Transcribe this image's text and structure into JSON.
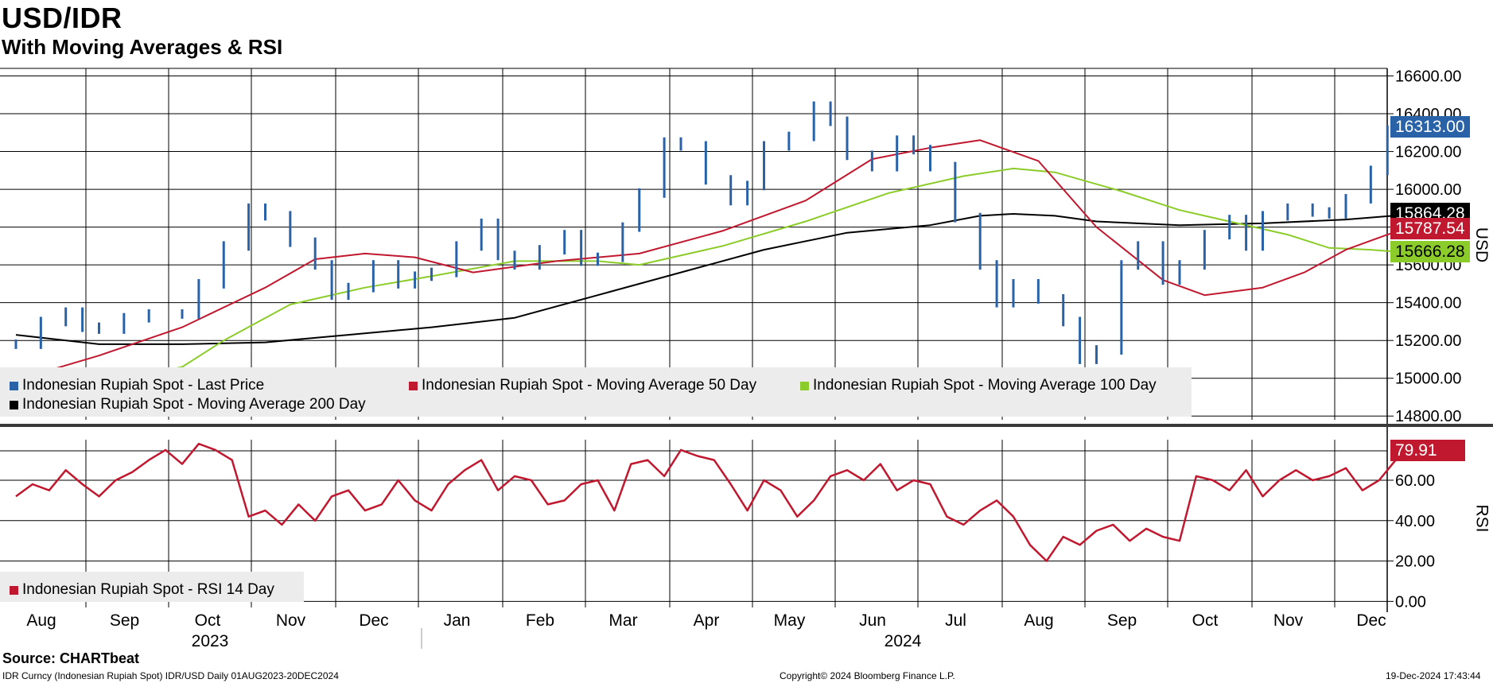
{
  "header": {
    "title": "USD/IDR",
    "subtitle": "With Moving Averages & RSI"
  },
  "footer": {
    "source": "Source: CHARTbeat",
    "ticker": "IDR Curncy (Indonesian Rupiah Spot) IDR/USD  Daily 01AUG2023-20DEC2024",
    "copyright": "Copyright© 2024 Bloomberg Finance L.P.",
    "timestamp": "19-Dec-2024 17:43:44"
  },
  "colors": {
    "last_price": "#2a62a8",
    "ma50": "#c0182f",
    "ma100": "#8ccc2a",
    "ma200": "#000000",
    "rsi": "#c0182f",
    "badge_price": "#2a62a8",
    "badge_ma50": "#c0182f",
    "badge_ma100": "#8ccc2a",
    "badge_ma200": "#000000",
    "badge_rsi": "#c0182f"
  },
  "chart_data": {
    "type": "line",
    "x_months": [
      "Aug",
      "Sep",
      "Oct",
      "Nov",
      "Dec",
      "Jan",
      "Feb",
      "Mar",
      "Apr",
      "May",
      "Jun",
      "Jul",
      "Aug",
      "Sep",
      "Oct",
      "Nov",
      "Dec"
    ],
    "x_years": [
      "2023",
      "2024"
    ],
    "y_axis_label": "USD",
    "y_ticks": [
      "16600.00",
      "16400.00",
      "16200.00",
      "16000.00",
      "15800.00",
      "15600.00",
      "15400.00",
      "15200.00",
      "15000.00",
      "14800.00"
    ],
    "y_range": [
      14780,
      16640
    ],
    "legend": {
      "last_price": "Indonesian Rupiah Spot - Last Price",
      "ma50": "Indonesian Rupiah Spot - Moving Average 50 Day",
      "ma100": "Indonesian Rupiah Spot - Moving Average 100 Day",
      "ma200": "Indonesian Rupiah Spot - Moving Average 200 Day"
    },
    "last_values": {
      "last_price": "16313.00",
      "ma200": "15864.28",
      "ma50": "15787.54",
      "ma100": "15666.28"
    },
    "series": [
      {
        "name": "Indonesian Rupiah Spot - Last Price",
        "x": [
          0,
          0.3,
          0.6,
          0.8,
          1,
          1.3,
          1.6,
          2,
          2.2,
          2.5,
          2.8,
          3,
          3.3,
          3.6,
          3.8,
          4,
          4.3,
          4.6,
          4.8,
          5,
          5.3,
          5.6,
          5.8,
          6,
          6.3,
          6.6,
          6.8,
          7,
          7.3,
          7.5,
          7.8,
          8,
          8.3,
          8.6,
          8.8,
          9,
          9.3,
          9.6,
          9.8,
          10,
          10.3,
          10.6,
          10.8,
          11,
          11.3,
          11.6,
          11.8,
          12,
          12.3,
          12.6,
          12.8,
          13,
          13.3,
          13.5,
          13.8,
          14,
          14.3,
          14.6,
          14.8,
          15,
          15.3,
          15.6,
          15.8,
          16,
          16.3,
          16.5,
          16.7
        ],
        "values": [
          15180,
          15300,
          15350,
          15270,
          15260,
          15320,
          15340,
          15340,
          15500,
          15700,
          15900,
          15860,
          15720,
          15600,
          15440,
          15480,
          15600,
          15500,
          15540,
          15560,
          15700,
          15820,
          15650,
          15600,
          15680,
          15760,
          15620,
          15640,
          15800,
          15980,
          16250,
          16230,
          16050,
          15940,
          16020,
          16230,
          16280,
          16440,
          16360,
          16180,
          16120,
          16260,
          16210,
          16120,
          15850,
          15600,
          15400,
          15500,
          15420,
          15300,
          15100,
          15150,
          15600,
          15700,
          15520,
          15600,
          15760,
          15840,
          15700,
          15860,
          15900,
          15880,
          15870,
          15950,
          16100,
          16313,
          16313
        ]
      },
      {
        "name": "Indonesian Rupiah Spot - Moving Average 50 Day",
        "x": [
          0,
          1,
          2,
          3,
          3.6,
          4.2,
          4.8,
          5.5,
          6.5,
          7.5,
          8.5,
          9.5,
          10.3,
          11,
          11.6,
          12.3,
          13,
          13.8,
          14.3,
          15,
          15.5,
          16,
          16.5,
          16.7
        ],
        "values": [
          14990,
          15120,
          15270,
          15480,
          15630,
          15660,
          15640,
          15560,
          15620,
          15660,
          15780,
          15940,
          16160,
          16220,
          16260,
          16150,
          15800,
          15520,
          15440,
          15480,
          15560,
          15680,
          15760,
          15787.54
        ]
      },
      {
        "name": "Indonesian Rupiah Spot - Moving Average 100 Day",
        "x": [
          0,
          1,
          2,
          2.5,
          3.3,
          4.2,
          5,
          6,
          7,
          7.5,
          8.5,
          9.5,
          10.5,
          11.4,
          12,
          12.5,
          13.3,
          14,
          14.7,
          15.3,
          15.8,
          16.3,
          16.7
        ],
        "values": [
          14950,
          14970,
          15060,
          15200,
          15390,
          15480,
          15540,
          15620,
          15620,
          15600,
          15700,
          15830,
          15980,
          16070,
          16110,
          16090,
          15990,
          15890,
          15820,
          15760,
          15690,
          15680,
          15666.28
        ]
      },
      {
        "name": "Indonesian Rupiah Spot - Moving Average 200 Day",
        "x": [
          0,
          1,
          2,
          3,
          4,
          5,
          6,
          7,
          8,
          9,
          10,
          11,
          11.6,
          12,
          12.5,
          13,
          14,
          15,
          16,
          16.7
        ],
        "values": [
          15230,
          15180,
          15180,
          15190,
          15230,
          15270,
          15320,
          15440,
          15560,
          15680,
          15770,
          15810,
          15860,
          15870,
          15860,
          15830,
          15810,
          15820,
          15840,
          15864.28
        ]
      }
    ],
    "rsi": {
      "y_axis_label": "RSI",
      "y_ticks": [
        "60.00",
        "40.00",
        "20.00",
        "0.00"
      ],
      "y_range": [
        -3,
        84
      ],
      "legend": "Indonesian Rupiah Spot - RSI 14 Day",
      "last_value": "79.91",
      "x": [
        0,
        0.2,
        0.4,
        0.6,
        0.8,
        1,
        1.2,
        1.4,
        1.6,
        1.8,
        2,
        2.2,
        2.4,
        2.6,
        2.8,
        3,
        3.2,
        3.4,
        3.6,
        3.8,
        4,
        4.2,
        4.4,
        4.6,
        4.8,
        5,
        5.2,
        5.4,
        5.6,
        5.8,
        6,
        6.2,
        6.4,
        6.6,
        6.8,
        7,
        7.2,
        7.4,
        7.6,
        7.8,
        8,
        8.2,
        8.4,
        8.6,
        8.8,
        9,
        9.2,
        9.4,
        9.6,
        9.8,
        10,
        10.2,
        10.4,
        10.6,
        10.8,
        11,
        11.2,
        11.4,
        11.6,
        11.8,
        12,
        12.2,
        12.4,
        12.6,
        12.8,
        13,
        13.2,
        13.4,
        13.6,
        13.8,
        14,
        14.2,
        14.4,
        14.6,
        14.8,
        15,
        15.2,
        15.4,
        15.6,
        15.8,
        16,
        16.2,
        16.4,
        16.6,
        16.7
      ],
      "values": [
        52,
        58,
        55,
        65,
        58,
        52,
        60,
        64,
        70,
        75,
        68,
        78,
        75,
        70,
        42,
        45,
        38,
        48,
        40,
        52,
        55,
        45,
        48,
        60,
        50,
        45,
        58,
        65,
        70,
        55,
        62,
        60,
        48,
        50,
        58,
        60,
        45,
        68,
        70,
        62,
        75,
        72,
        70,
        58,
        45,
        60,
        55,
        42,
        50,
        62,
        65,
        60,
        68,
        55,
        60,
        58,
        42,
        38,
        45,
        50,
        42,
        28,
        20,
        32,
        28,
        35,
        38,
        30,
        36,
        32,
        30,
        62,
        60,
        55,
        65,
        52,
        60,
        65,
        60,
        62,
        66,
        55,
        60,
        70,
        79.91
      ]
    },
    "grid": true,
    "legend_placement": "bottom-left"
  }
}
